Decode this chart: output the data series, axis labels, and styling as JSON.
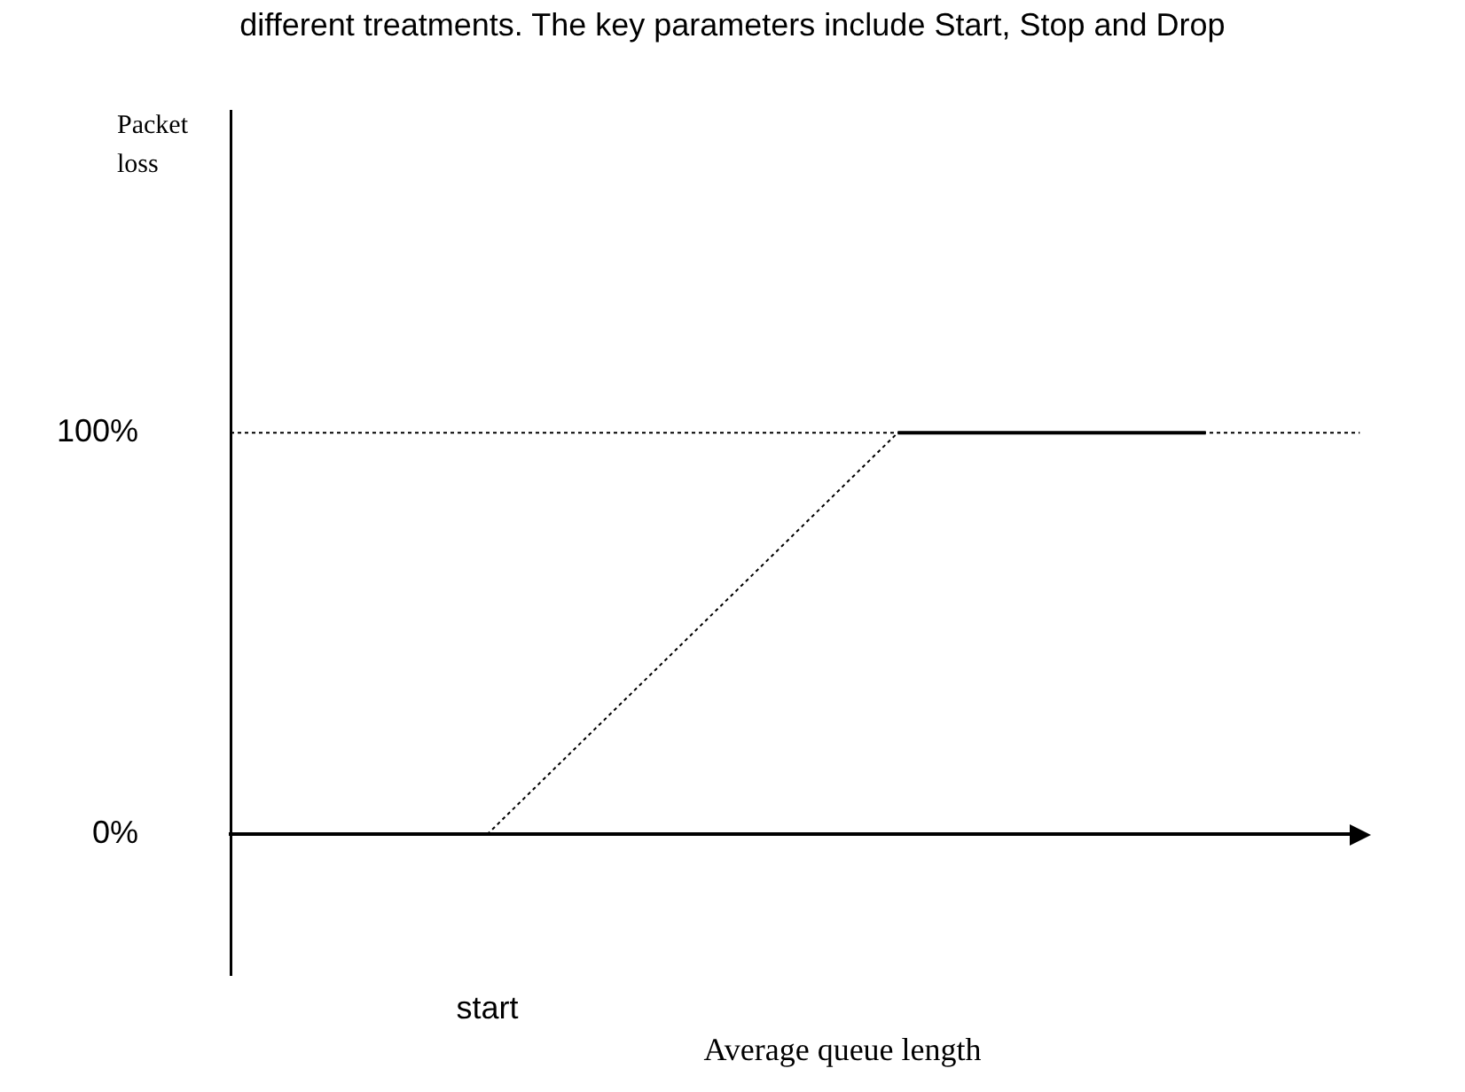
{
  "chart_data": {
    "type": "line",
    "title": "different treatments. The key parameters include Start, Stop and Drop",
    "xlabel": "Average queue length",
    "ylabel": "Packet loss",
    "categories": [
      null,
      null,
      "start",
      null,
      null,
      null,
      null,
      null,
      null,
      null,
      null
    ],
    "series": [
      {
        "color": "#000000",
        "line_style": "dotted",
        "values": [
          null,
          null,
          0,
          25,
          50,
          75,
          100,
          null,
          null,
          null,
          null
        ]
      },
      {
        "color": "#000000",
        "line_style": "solid",
        "values": [
          null,
          null,
          null,
          null,
          null,
          null,
          100,
          100,
          100,
          100,
          null
        ]
      }
    ],
    "ylim": [
      -35,
      180
    ],
    "yticks": [
      {
        "value": 0,
        "label": "0%"
      },
      {
        "value": 100,
        "label": "100%"
      }
    ],
    "ref_lines": [
      {
        "axis": "y",
        "value": 100,
        "color": "#000000",
        "line_style": "dotted"
      }
    ],
    "grid": false,
    "legend": false,
    "marker": "none"
  }
}
